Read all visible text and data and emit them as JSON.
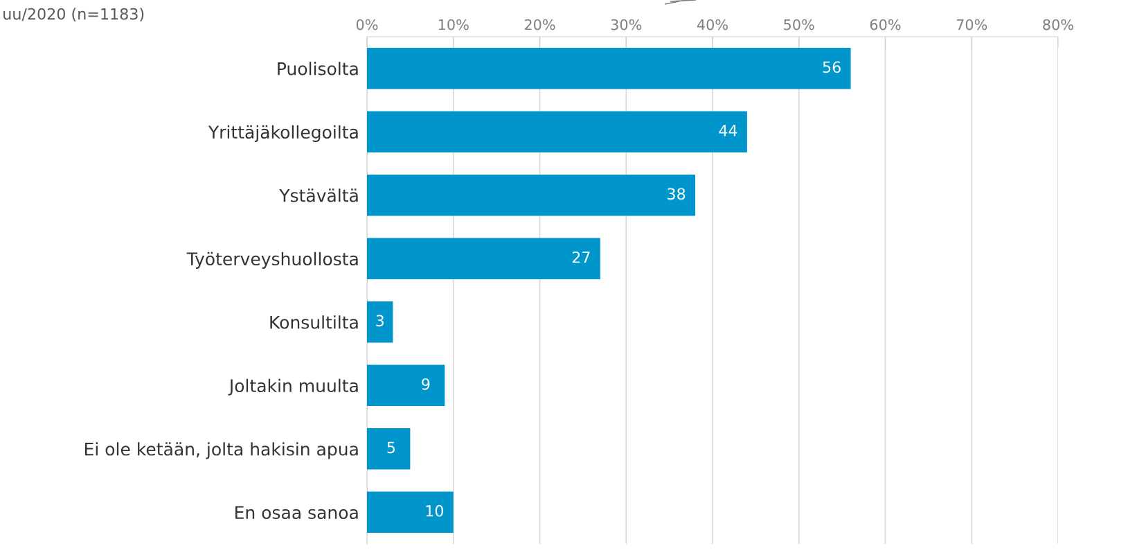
{
  "chart_data": {
    "type": "bar",
    "orientation": "horizontal",
    "categories": [
      "Puolisolta",
      "Yrittäjäkollegoilta",
      "Ystävältä",
      "Työterveyshuollosta",
      "Konsultilta",
      "Joltakin muulta",
      "Ei ole ketään, jolta hakisin apua",
      "En osaa sanoa"
    ],
    "values": [
      56,
      44,
      38,
      27,
      3,
      9,
      5,
      10
    ],
    "color": "#0095cb",
    "data_labels": true,
    "xlim": [
      0,
      80
    ],
    "xticks": [
      {
        "value": 0,
        "label": "0%"
      },
      {
        "value": 10,
        "label": "10%"
      },
      {
        "value": 20,
        "label": "20%"
      },
      {
        "value": 30,
        "label": "30%"
      },
      {
        "value": 40,
        "label": "40%"
      },
      {
        "value": 50,
        "label": "50%"
      },
      {
        "value": 60,
        "label": "60%"
      },
      {
        "value": 70,
        "label": "70%"
      },
      {
        "value": 80,
        "label": "80%"
      }
    ],
    "grid": "x",
    "legend": false,
    "annotations": [
      "uu/2020 (n=1183)"
    ]
  }
}
